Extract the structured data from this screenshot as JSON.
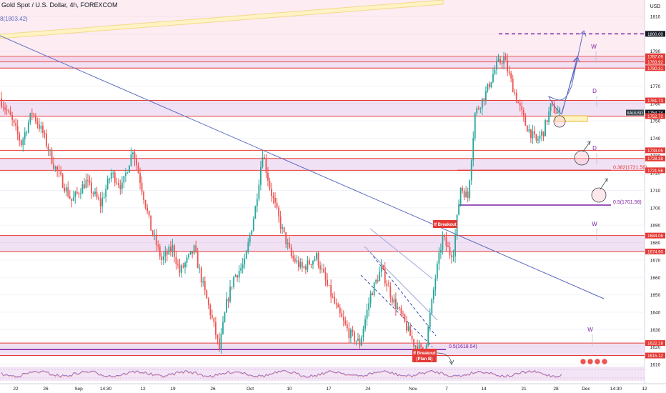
{
  "chart_data": {
    "type": "candlestick",
    "title": "Gold Spot / U.S. Dollar, 4h, FOREXCOM",
    "top_left_note": "8(1803.42)",
    "ylabel": "USD",
    "ylim": [
      1600,
      1815
    ],
    "yticks": [
      1610,
      1620,
      1630,
      1640,
      1650,
      1660,
      1670,
      1680,
      1690,
      1700,
      1710,
      1720,
      1730,
      1740,
      1750,
      1760,
      1770,
      1780,
      1790,
      1800,
      1810
    ],
    "xtick_labels": [
      "22",
      "26",
      "Sep",
      "14:30",
      "12",
      "19",
      "26",
      "Oct",
      "10",
      "17",
      "24",
      "Nov",
      "7",
      "14",
      "21",
      "28",
      "Dec",
      "14:30",
      "12"
    ],
    "price_labels": [
      {
        "value": 1800.0,
        "text": "1800.00",
        "style": "dark"
      },
      {
        "value": 1787.09,
        "text": "1787.09",
        "style": "red"
      },
      {
        "value": 1783.92,
        "text": "1783.92",
        "style": "red"
      },
      {
        "value": 1780.31,
        "text": "1780.31",
        "style": "red"
      },
      {
        "value": 1761.73,
        "text": "1761.73",
        "style": "red"
      },
      {
        "value": 1754.74,
        "text": "1754.74",
        "style": "dark"
      },
      {
        "value": 1752.72,
        "text": "1752.72",
        "style": "red"
      },
      {
        "value": 1733.05,
        "text": "1733.05",
        "style": "red"
      },
      {
        "value": 1728.38,
        "text": "1728.38",
        "style": "red"
      },
      {
        "value": 1721.56,
        "text": "1721.56",
        "style": "red"
      },
      {
        "value": 1684.06,
        "text": "1684.06",
        "style": "red"
      },
      {
        "value": 1674.9,
        "text": "1674.90",
        "style": "red"
      },
      {
        "value": 1622.28,
        "text": "1622.28",
        "style": "red"
      },
      {
        "value": 1615.12,
        "text": "1615.12",
        "style": "red"
      }
    ],
    "symbol_tag": "XAUUSD",
    "zones": [
      {
        "from": 1780.31,
        "to": 1787.09,
        "line": 1783.92
      },
      {
        "from": 1752.72,
        "to": 1761.73
      },
      {
        "from": 1721.56,
        "to": 1728.38
      },
      {
        "from": 1674.9,
        "to": 1684.06
      },
      {
        "from": 1615.12,
        "to": 1622.28
      }
    ],
    "levels": [
      {
        "value": 1800.0,
        "kind": "target",
        "color": "#7b1fa2"
      },
      {
        "value": 1733.05,
        "kind": "line",
        "color": "#e53935"
      },
      {
        "value": 1721.56,
        "kind": "fib",
        "color": "#e53935",
        "label": "0.382(1721.56)"
      },
      {
        "value": 1701.58,
        "kind": "fib",
        "color": "#7b1fa2",
        "label": "0.5(1701.58)"
      },
      {
        "value": 1618.54,
        "kind": "fib",
        "color": "#7b1fa2",
        "label": "0.5(1618.54)"
      }
    ],
    "timeframe_marks": [
      "W",
      "D",
      "D",
      "W",
      "W"
    ],
    "callouts": [
      {
        "text": "If Breakout"
      },
      {
        "text": "If Breakout (Plan B)"
      }
    ],
    "key_path": [
      {
        "i": 0,
        "v": 1763
      },
      {
        "i": 6,
        "v": 1752
      },
      {
        "i": 12,
        "v": 1737
      },
      {
        "i": 18,
        "v": 1755
      },
      {
        "i": 24,
        "v": 1743
      },
      {
        "i": 30,
        "v": 1725
      },
      {
        "i": 40,
        "v": 1704
      },
      {
        "i": 48,
        "v": 1715
      },
      {
        "i": 56,
        "v": 1702
      },
      {
        "i": 62,
        "v": 1720
      },
      {
        "i": 68,
        "v": 1712
      },
      {
        "i": 74,
        "v": 1734
      },
      {
        "i": 78,
        "v": 1716
      },
      {
        "i": 84,
        "v": 1688
      },
      {
        "i": 90,
        "v": 1670
      },
      {
        "i": 96,
        "v": 1677
      },
      {
        "i": 100,
        "v": 1663
      },
      {
        "i": 108,
        "v": 1676
      },
      {
        "i": 114,
        "v": 1651
      },
      {
        "i": 118,
        "v": 1636
      },
      {
        "i": 122,
        "v": 1619
      },
      {
        "i": 126,
        "v": 1645
      },
      {
        "i": 130,
        "v": 1660
      },
      {
        "i": 136,
        "v": 1668
      },
      {
        "i": 142,
        "v": 1700
      },
      {
        "i": 146,
        "v": 1732
      },
      {
        "i": 150,
        "v": 1712
      },
      {
        "i": 156,
        "v": 1690
      },
      {
        "i": 162,
        "v": 1672
      },
      {
        "i": 168,
        "v": 1665
      },
      {
        "i": 176,
        "v": 1672
      },
      {
        "i": 182,
        "v": 1655
      },
      {
        "i": 188,
        "v": 1640
      },
      {
        "i": 194,
        "v": 1628
      },
      {
        "i": 200,
        "v": 1622
      },
      {
        "i": 206,
        "v": 1650
      },
      {
        "i": 212,
        "v": 1665
      },
      {
        "i": 218,
        "v": 1648
      },
      {
        "i": 224,
        "v": 1636
      },
      {
        "i": 230,
        "v": 1622
      },
      {
        "i": 236,
        "v": 1616
      },
      {
        "i": 242,
        "v": 1660
      },
      {
        "i": 246,
        "v": 1683
      },
      {
        "i": 250,
        "v": 1674
      },
      {
        "i": 252,
        "v": 1675
      },
      {
        "i": 256,
        "v": 1712
      },
      {
        "i": 260,
        "v": 1706
      },
      {
        "i": 264,
        "v": 1754
      },
      {
        "i": 270,
        "v": 1766
      },
      {
        "i": 276,
        "v": 1782
      },
      {
        "i": 280,
        "v": 1786
      },
      {
        "i": 286,
        "v": 1766
      },
      {
        "i": 292,
        "v": 1748
      },
      {
        "i": 298,
        "v": 1738
      },
      {
        "i": 302,
        "v": 1744
      },
      {
        "i": 306,
        "v": 1758
      },
      {
        "i": 310,
        "v": 1754.74
      }
    ],
    "rsi_panel": true
  }
}
